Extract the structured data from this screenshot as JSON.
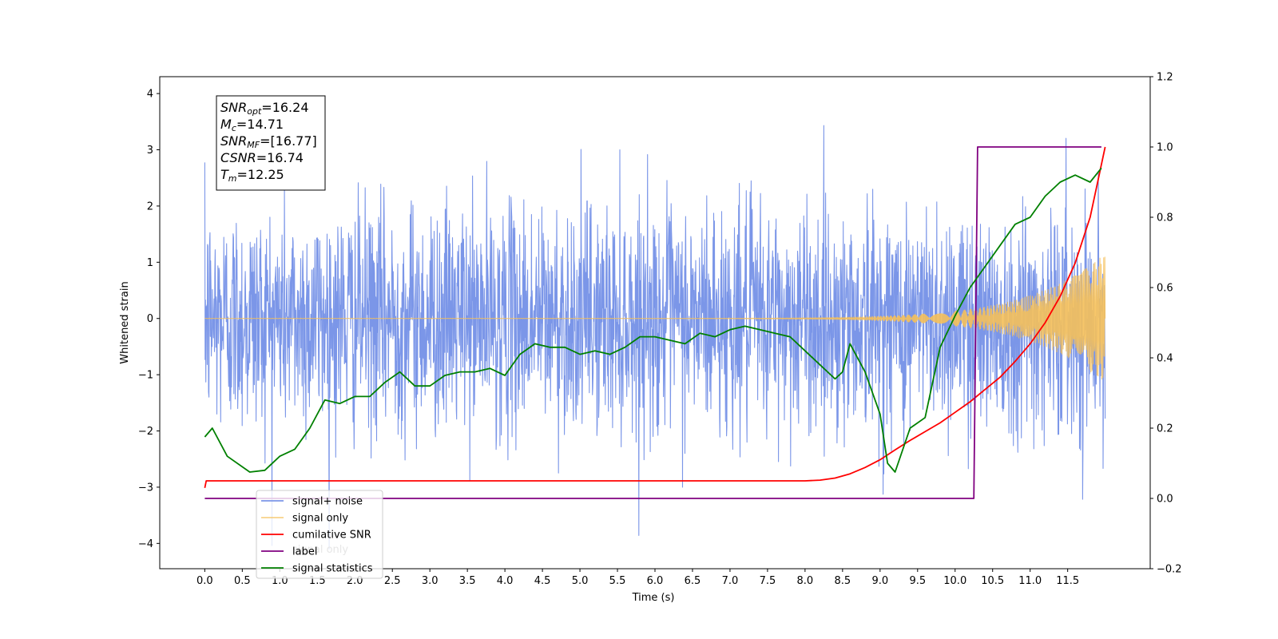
{
  "chart_data": {
    "type": "line",
    "xlabel": "Time (s)",
    "ylabel": "Whitened strain",
    "xlim": [
      -0.6,
      12.6
    ],
    "ylim": [
      -4.45,
      4.3
    ],
    "ylim_right": [
      -0.2,
      1.2
    ],
    "x_ticks": [
      "0.0",
      "0.5",
      "1.0",
      "1.5",
      "2.0",
      "2.5",
      "3.0",
      "3.5",
      "4.0",
      "4.5",
      "5.0",
      "5.5",
      "6.0",
      "6.5",
      "7.0",
      "7.5",
      "8.0",
      "8.5",
      "9.0",
      "9.5",
      "10.0",
      "10.5",
      "11.0",
      "11.5"
    ],
    "y_ticks": [
      "-4",
      "-3",
      "-2",
      "-1",
      "0",
      "1",
      "2",
      "3",
      "4"
    ],
    "y_ticks_right": [
      "-0.2",
      "0.0",
      "0.2",
      "0.4",
      "0.6",
      "0.8",
      "1.0",
      "1.2"
    ],
    "legend_position": "lower-left",
    "series": [
      {
        "name": "signal+ noise",
        "axis": "left",
        "color": "#7b96e8",
        "kind": "noise",
        "x_range": [
          0.0,
          12.0
        ],
        "amplitude": 1.0
      },
      {
        "name": "signal only",
        "axis": "left",
        "color": "#f5c05a",
        "kind": "chirp",
        "x_range": [
          0.0,
          12.0
        ],
        "peak_amplitude": 1.15
      },
      {
        "name": "cumilative SNR",
        "axis": "right",
        "color": "#ff0000",
        "x": [
          0.0,
          0.02,
          5.0,
          8.0,
          8.2,
          8.4,
          8.6,
          8.8,
          9.0,
          9.2,
          9.4,
          9.6,
          9.8,
          10.0,
          10.2,
          10.4,
          10.6,
          10.8,
          11.0,
          11.2,
          11.4,
          11.6,
          11.8,
          12.0
        ],
        "y": [
          0.03,
          0.05,
          0.05,
          0.05,
          0.052,
          0.058,
          0.07,
          0.088,
          0.11,
          0.138,
          0.165,
          0.19,
          0.215,
          0.245,
          0.275,
          0.31,
          0.345,
          0.39,
          0.44,
          0.5,
          0.575,
          0.67,
          0.8,
          1.0
        ]
      },
      {
        "name": "label",
        "axis": "right",
        "color": "#800080",
        "x": [
          0.0,
          10.25,
          10.3,
          11.95
        ],
        "y": [
          0.0,
          0.0,
          1.0,
          1.0
        ]
      },
      {
        "name": "signal statistics",
        "axis": "right",
        "color": "#008000",
        "x": [
          0.0,
          0.1,
          0.3,
          0.6,
          0.8,
          1.0,
          1.2,
          1.4,
          1.6,
          1.8,
          2.0,
          2.2,
          2.4,
          2.6,
          2.8,
          3.0,
          3.2,
          3.4,
          3.6,
          3.8,
          4.0,
          4.2,
          4.4,
          4.6,
          4.8,
          5.0,
          5.2,
          5.4,
          5.6,
          5.8,
          6.0,
          6.2,
          6.4,
          6.6,
          6.8,
          7.0,
          7.2,
          7.4,
          7.6,
          7.8,
          8.0,
          8.2,
          8.4,
          8.5,
          8.6,
          8.8,
          9.0,
          9.1,
          9.2,
          9.4,
          9.6,
          9.8,
          10.0,
          10.2,
          10.4,
          10.6,
          10.8,
          11.0,
          11.2,
          11.4,
          11.6,
          11.8,
          11.95
        ],
        "y": [
          0.175,
          0.2,
          0.12,
          0.075,
          0.08,
          0.12,
          0.14,
          0.2,
          0.28,
          0.27,
          0.29,
          0.29,
          0.33,
          0.36,
          0.32,
          0.32,
          0.35,
          0.36,
          0.36,
          0.37,
          0.35,
          0.41,
          0.44,
          0.43,
          0.43,
          0.41,
          0.42,
          0.41,
          0.43,
          0.46,
          0.46,
          0.45,
          0.44,
          0.47,
          0.46,
          0.48,
          0.49,
          0.48,
          0.47,
          0.46,
          0.42,
          0.38,
          0.34,
          0.36,
          0.44,
          0.36,
          0.24,
          0.1,
          0.075,
          0.2,
          0.23,
          0.43,
          0.52,
          0.6,
          0.66,
          0.72,
          0.78,
          0.8,
          0.86,
          0.9,
          0.92,
          0.9,
          0.94
        ]
      }
    ],
    "annotation": [
      {
        "main": "SNR",
        "sub": "opt",
        "value": "=16.24"
      },
      {
        "main": "M",
        "sub": "c",
        "value": "=14.71"
      },
      {
        "main": "SNR",
        "sub": "MF",
        "value": "=[16.77]"
      },
      {
        "main": "CSNR",
        "sub": "",
        "value": "=16.74"
      },
      {
        "main": "T",
        "sub": "m",
        "value": "=12.25"
      }
    ],
    "legend_entries": [
      "signal+ noise",
      "signal only",
      "cumilative SNR",
      "label",
      "signal statistics"
    ],
    "legend_ghost_text": "signal only"
  }
}
